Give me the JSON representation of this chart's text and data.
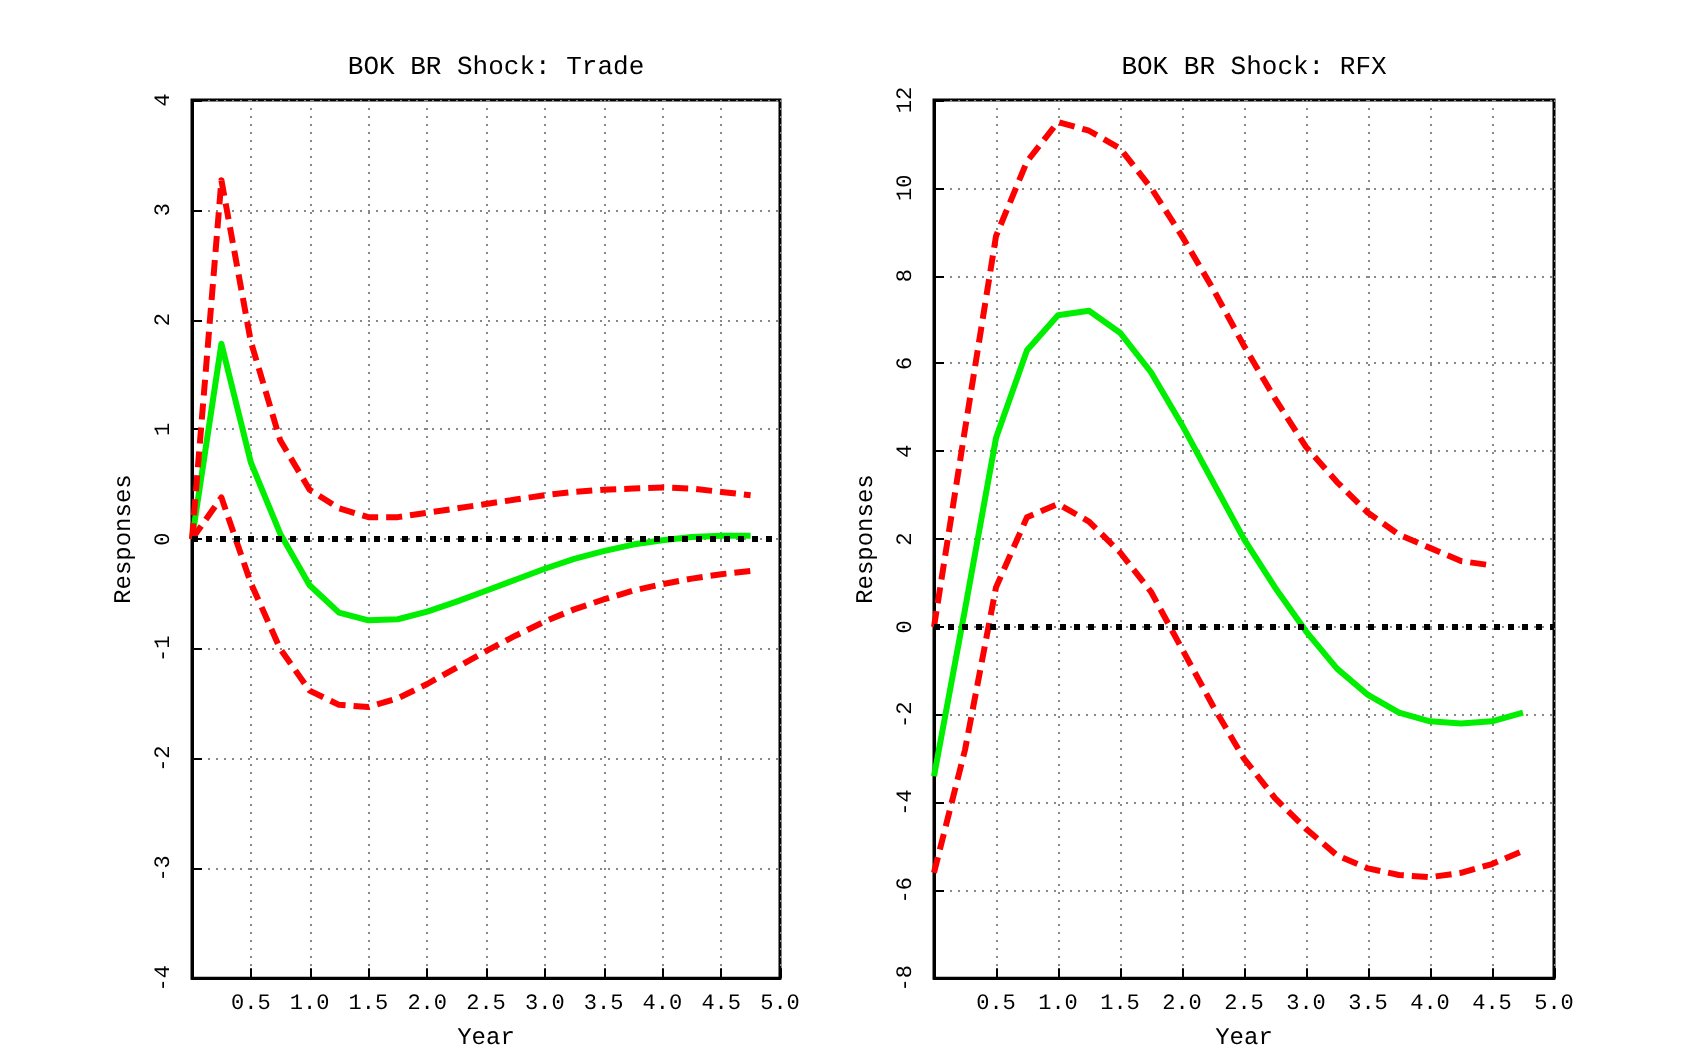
{
  "chart_data": [
    {
      "type": "line",
      "title": "BOK BR Shock: Trade",
      "xlabel": "Year",
      "ylabel": "Responses",
      "grid": true,
      "marker": "none",
      "x": [
        0,
        0.25,
        0.5,
        0.75,
        1.0,
        1.25,
        1.5,
        1.75,
        2.0,
        2.25,
        2.5,
        2.75,
        3.0,
        3.25,
        3.5,
        3.75,
        4.0,
        4.25,
        4.5,
        4.75
      ],
      "xlim": [
        0,
        5
      ],
      "xticks": [
        {
          "value": 0.5,
          "label": "0.5"
        },
        {
          "value": 1,
          "label": "1.0"
        },
        {
          "value": 1.5,
          "label": "1.5"
        },
        {
          "value": 2,
          "label": "2.0"
        },
        {
          "value": 2.5,
          "label": "2.5"
        },
        {
          "value": 3,
          "label": "3.0"
        },
        {
          "value": 3.5,
          "label": "3.5"
        },
        {
          "value": 4,
          "label": "4.0"
        },
        {
          "value": 4.5,
          "label": "4.5"
        },
        {
          "value": 5,
          "label": "5.0"
        }
      ],
      "ylim": [
        -4,
        4
      ],
      "yticks": [
        -4,
        -3,
        -2,
        -1,
        0,
        1,
        2,
        3,
        4
      ],
      "series": [
        {
          "color": "#00ee00",
          "line_style": "solid",
          "values": [
            0,
            1.78,
            0.7,
            0.05,
            -0.42,
            -0.67,
            -0.74,
            -0.73,
            -0.66,
            -0.57,
            -0.47,
            -0.37,
            -0.27,
            -0.18,
            -0.11,
            -0.05,
            -0.01,
            0.02,
            0.03,
            0.03
          ]
        },
        {
          "color": "#ff0000",
          "line_style": "dashed",
          "values": [
            0,
            3.27,
            1.8,
            0.9,
            0.45,
            0.28,
            0.2,
            0.2,
            0.24,
            0.28,
            0.32,
            0.36,
            0.4,
            0.43,
            0.45,
            0.46,
            0.47,
            0.46,
            0.43,
            0.4
          ]
        },
        {
          "color": "#ff0000",
          "line_style": "dashed",
          "values": [
            0,
            0.38,
            -0.4,
            -1.0,
            -1.38,
            -1.51,
            -1.53,
            -1.45,
            -1.32,
            -1.17,
            -1.02,
            -0.88,
            -0.75,
            -0.64,
            -0.55,
            -0.47,
            -0.41,
            -0.36,
            -0.32,
            -0.29
          ]
        }
      ],
      "ref_lines": [
        {
          "axis": "y",
          "value": 0,
          "color": "#000000",
          "line_style": "dotted"
        }
      ]
    },
    {
      "type": "line",
      "title": "BOK BR Shock: RFX",
      "xlabel": "Year",
      "ylabel": "Responses",
      "grid": true,
      "marker": "none",
      "x": [
        0,
        0.25,
        0.5,
        0.75,
        1.0,
        1.25,
        1.5,
        1.75,
        2.0,
        2.25,
        2.5,
        2.75,
        3.0,
        3.25,
        3.5,
        3.75,
        4.0,
        4.25,
        4.5,
        4.75
      ],
      "xlim": [
        0,
        5
      ],
      "xticks": [
        {
          "value": 0.5,
          "label": "0.5"
        },
        {
          "value": 1,
          "label": "1.0"
        },
        {
          "value": 1.5,
          "label": "1.5"
        },
        {
          "value": 2,
          "label": "2.0"
        },
        {
          "value": 2.5,
          "label": "2.5"
        },
        {
          "value": 3,
          "label": "3.0"
        },
        {
          "value": 3.5,
          "label": "3.5"
        },
        {
          "value": 4,
          "label": "4.0"
        },
        {
          "value": 4.5,
          "label": "4.5"
        },
        {
          "value": 5,
          "label": "5.0"
        }
      ],
      "ylim": [
        -8,
        12
      ],
      "yticks": [
        -8,
        -6,
        -4,
        -2,
        0,
        2,
        4,
        6,
        8,
        10,
        12
      ],
      "series": [
        {
          "color": "#00ee00",
          "line_style": "solid",
          "values": [
            -3.4,
            0.4,
            4.3,
            6.3,
            7.1,
            7.2,
            6.7,
            5.8,
            4.6,
            3.3,
            2.0,
            0.9,
            -0.1,
            -0.95,
            -1.55,
            -1.95,
            -2.15,
            -2.2,
            -2.15,
            -1.95
          ]
        },
        {
          "color": "#ff0000",
          "line_style": "dashed",
          "values": [
            0,
            4.5,
            8.9,
            10.6,
            11.5,
            11.3,
            10.9,
            10.0,
            8.9,
            7.7,
            6.4,
            5.2,
            4.1,
            3.3,
            2.6,
            2.1,
            1.8,
            1.5,
            1.4,
            null
          ]
        },
        {
          "color": "#ff0000",
          "line_style": "dashed",
          "values": [
            -5.6,
            -2.8,
            0.9,
            2.5,
            2.8,
            2.4,
            1.7,
            0.8,
            -0.5,
            -1.8,
            -3.0,
            -3.9,
            -4.6,
            -5.2,
            -5.5,
            -5.65,
            -5.7,
            -5.6,
            -5.4,
            -5.1
          ]
        }
      ],
      "ref_lines": [
        {
          "axis": "y",
          "value": 0,
          "color": "#000000",
          "line_style": "dotted"
        }
      ]
    }
  ]
}
